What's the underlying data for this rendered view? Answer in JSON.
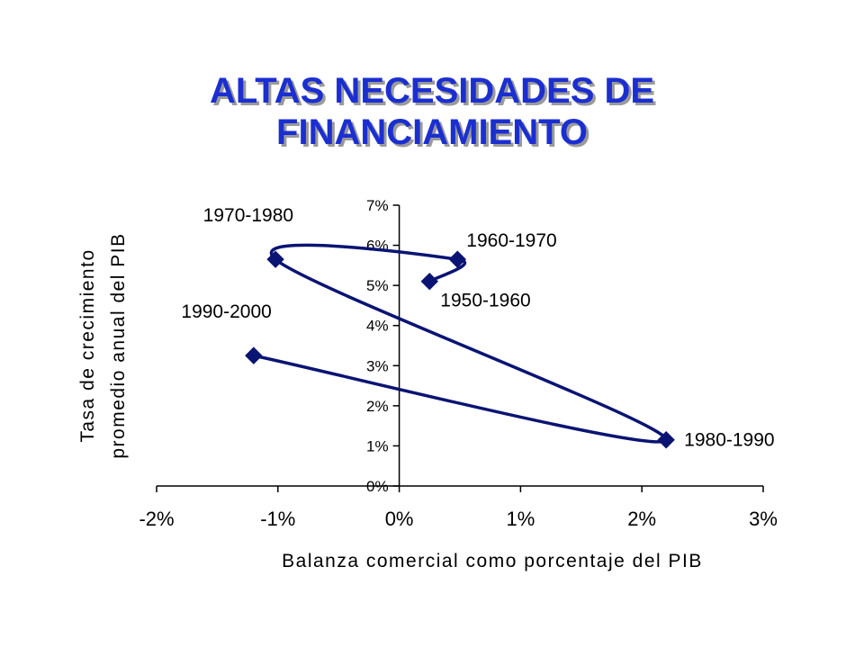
{
  "title": [
    "ALTAS NECESIDADES DE",
    "FINANCIAMIENTO"
  ],
  "colors": {
    "title": "#1b2fd1",
    "series": "#0a1473",
    "axis": "#000000"
  },
  "chart_data": {
    "type": "line",
    "xlabel": "Balanza comercial como porcentaje del PIB",
    "ylabel": [
      "Tasa de crecimiento",
      "promedio anual del PIB"
    ],
    "xlim": [
      -2,
      3
    ],
    "ylim": [
      0,
      7
    ],
    "xticks": [
      "-2%",
      "-1%",
      "0%",
      "1%",
      "2%",
      "3%"
    ],
    "yticks": [
      "0%",
      "1%",
      "2%",
      "3%",
      "4%",
      "5%",
      "6%",
      "7%"
    ],
    "grid": false,
    "legend": "none",
    "marker": "diamond",
    "smooth": true,
    "points": [
      {
        "label": "1950-1960",
        "x": 0.25,
        "y": 5.1,
        "label_pos": "below-right"
      },
      {
        "label": "1960-1970",
        "x": 0.48,
        "y": 5.65,
        "label_pos": "above-right"
      },
      {
        "label": "1970-1980",
        "x": -1.02,
        "y": 5.65,
        "label_pos": "above-left"
      },
      {
        "label": "1980-1990",
        "x": 2.2,
        "y": 1.15,
        "label_pos": "right"
      },
      {
        "label": "1990-2000",
        "x": -1.2,
        "y": 3.25,
        "label_pos": "above-left"
      }
    ]
  }
}
